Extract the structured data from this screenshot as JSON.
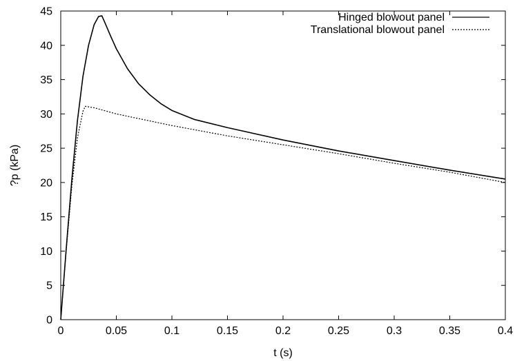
{
  "chart_data": {
    "type": "line",
    "title": "",
    "xlabel": "t (s)",
    "ylabel": "?p (kPa)",
    "xlim": [
      0,
      0.4
    ],
    "ylim": [
      0,
      45
    ],
    "xticks": [
      0,
      0.05,
      0.1,
      0.15,
      0.2,
      0.25,
      0.3,
      0.35,
      0.4
    ],
    "xtick_labels": [
      "0",
      "0.05",
      "0.1",
      "0.15",
      "0.2",
      "0.25",
      "0.3",
      "0.35",
      "0.4"
    ],
    "yticks": [
      0,
      5,
      10,
      15,
      20,
      25,
      30,
      35,
      40,
      45
    ],
    "ytick_labels": [
      "0",
      "5",
      "10",
      "15",
      "20",
      "25",
      "30",
      "35",
      "40",
      "45"
    ],
    "grid": false,
    "legend_position": "top-right",
    "series": [
      {
        "name": "Hinged blowout panel",
        "line_style": "solid",
        "color": "#000000",
        "x": [
          0,
          0.005,
          0.01,
          0.015,
          0.02,
          0.025,
          0.03,
          0.034,
          0.037,
          0.04,
          0.045,
          0.05,
          0.06,
          0.07,
          0.08,
          0.09,
          0.1,
          0.12,
          0.15,
          0.2,
          0.25,
          0.3,
          0.35,
          0.4
        ],
        "y": [
          0,
          10.5,
          20.5,
          29.0,
          35.5,
          40.0,
          43.0,
          44.2,
          44.3,
          43.2,
          41.3,
          39.5,
          36.6,
          34.4,
          32.8,
          31.5,
          30.5,
          29.2,
          28.0,
          26.2,
          24.6,
          23.2,
          21.8,
          20.5
        ]
      },
      {
        "name": "Translational blowout panel",
        "line_style": "dotted",
        "color": "#000000",
        "x": [
          0,
          0.005,
          0.01,
          0.015,
          0.02,
          0.022,
          0.03,
          0.05,
          0.1,
          0.15,
          0.2,
          0.25,
          0.3,
          0.35,
          0.4
        ],
        "y": [
          0,
          10.2,
          19.5,
          26.5,
          30.4,
          31.1,
          30.9,
          30.0,
          28.3,
          26.8,
          25.5,
          24.2,
          22.8,
          21.5,
          20.0
        ]
      }
    ]
  }
}
